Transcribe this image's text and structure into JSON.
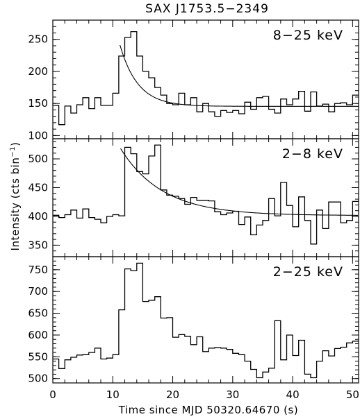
{
  "chart_data": {
    "type": "line",
    "title": "SAX J1753.5−2349",
    "xlabel": "Time since MJD 50320.64670 (s)",
    "ylabel": "Intensity (cts bin",
    "ylabel_sup": "−1",
    "ylabel_close": ")",
    "xlim": [
      0,
      51
    ],
    "x_ticks": [
      0,
      10,
      20,
      30,
      40,
      50
    ],
    "bin_width_s": 1,
    "bin_start_s": 0,
    "panels": [
      {
        "label": "8−25 keV",
        "ylim": [
          95,
          280
        ],
        "y_ticks": [
          100,
          150,
          200,
          250
        ],
        "values": [
          147,
          117,
          146,
          135,
          148,
          159,
          142,
          159,
          147,
          147,
          166,
          224,
          253,
          262,
          224,
          200,
          190,
          175,
          163,
          150,
          148,
          166,
          148,
          159,
          137,
          150,
          137,
          130,
          139,
          136,
          139,
          134,
          152,
          141,
          159,
          161,
          141,
          135,
          157,
          148,
          157,
          169,
          138,
          168,
          146,
          149,
          137,
          150,
          151,
          148,
          163
        ],
        "fit": {
          "t_start": 11.2,
          "t_end": 51,
          "peak": 241,
          "base": 145.5,
          "tau": 3.0
        }
      },
      {
        "label": "2−8 keV",
        "ylim": [
          330,
          535
        ],
        "y_ticks": [
          350,
          400,
          450,
          500
        ],
        "values": [
          402,
          398,
          403,
          411,
          397,
          413,
          398,
          395,
          389,
          400,
          403,
          401,
          520,
          509,
          478,
          474,
          505,
          524,
          446,
          437,
          435,
          431,
          421,
          433,
          428,
          428,
          427,
          408,
          403,
          406,
          409,
          386,
          399,
          368,
          385,
          393,
          431,
          401,
          459,
          419,
          382,
          434,
          393,
          352,
          411,
          379,
          425,
          425,
          389,
          393,
          426
        ],
        "fit": {
          "t_start": 11.3,
          "t_end": 51,
          "peak": 518,
          "base": 401.5,
          "tau": 7.0
        }
      },
      {
        "label": "2−25 keV",
        "ylim": [
          490,
          780
        ],
        "y_ticks": [
          500,
          550,
          600,
          650,
          700,
          750
        ],
        "values": [
          545,
          523,
          543,
          549,
          554,
          555,
          560,
          570,
          545,
          547,
          555,
          658,
          752,
          748,
          765,
          677,
          680,
          688,
          639,
          640,
          595,
          601,
          597,
          578,
          596,
          562,
          570,
          571,
          570,
          567,
          558,
          555,
          540,
          521,
          502,
          515,
          524,
          633,
          543,
          600,
          553,
          588,
          510,
          502,
          540,
          564,
          552,
          569,
          572,
          582,
          586
        ]
      }
    ]
  }
}
